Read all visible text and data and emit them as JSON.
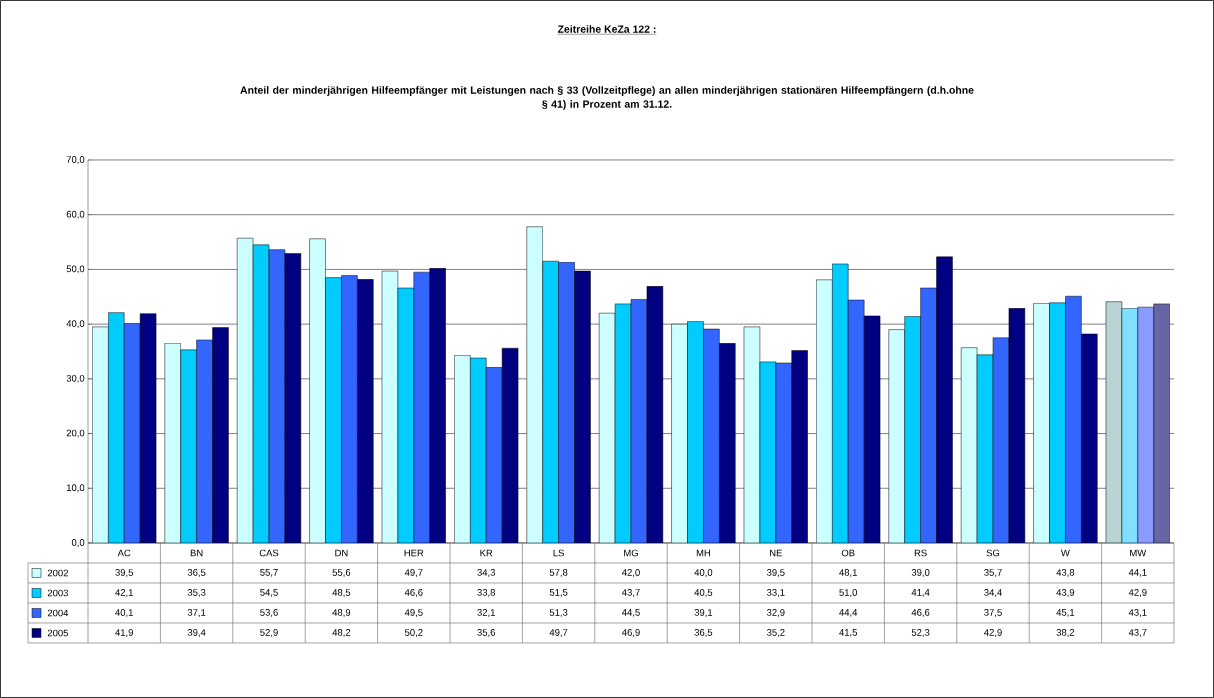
{
  "chart_data": {
    "type": "bar",
    "title": "Zeitreihe KeZa 122 :",
    "subtitle": "Anteil der minderjährigen Hilfeempfänger mit Leistungen nach § 33 (Vollzeitpflege) an allen minderjährigen stationären Hilfeempfängern (d.h.ohne § 41) in Prozent am 31.12.",
    "categories": [
      "AC",
      "BN",
      "CAS",
      "DN",
      "HER",
      "KR",
      "LS",
      "MG",
      "MH",
      "NE",
      "OB",
      "RS",
      "SG",
      "W",
      "MW"
    ],
    "series": [
      {
        "name": "2002",
        "color": "#ccffff",
        "colors": [
          "#ccffff",
          "#ccffff",
          "#ccffff",
          "#ccffff",
          "#ccffff",
          "#ccffff",
          "#ccffff",
          "#ccffff",
          "#ccffff",
          "#ccffff",
          "#ccffff",
          "#ccffff",
          "#ccffff",
          "#ccffff",
          "#b8d4d4"
        ],
        "values": [
          39.5,
          36.5,
          55.7,
          55.6,
          49.7,
          34.3,
          57.8,
          42.0,
          40.0,
          39.5,
          48.1,
          39.0,
          35.7,
          43.8,
          44.1
        ],
        "value_labels": [
          "39,5",
          "36,5",
          "55,7",
          "55,6",
          "49,7",
          "34,3",
          "57,8",
          "42,0",
          "40,0",
          "39,5",
          "48,1",
          "39,0",
          "35,7",
          "43,8",
          "44,1"
        ]
      },
      {
        "name": "2003",
        "color": "#00ccff",
        "colors": [
          "#00ccff",
          "#00ccff",
          "#00ccff",
          "#00ccff",
          "#00ccff",
          "#00ccff",
          "#00ccff",
          "#00ccff",
          "#00ccff",
          "#00ccff",
          "#00ccff",
          "#00ccff",
          "#00ccff",
          "#00ccff",
          "#80e0ff"
        ],
        "values": [
          42.1,
          35.3,
          54.5,
          48.5,
          46.6,
          33.8,
          51.5,
          43.7,
          40.5,
          33.1,
          51.0,
          41.4,
          34.4,
          43.9,
          42.9
        ],
        "value_labels": [
          "42,1",
          "35,3",
          "54,5",
          "48,5",
          "46,6",
          "33,8",
          "51,5",
          "43,7",
          "40,5",
          "33,1",
          "51,0",
          "41,4",
          "34,4",
          "43,9",
          "42,9"
        ]
      },
      {
        "name": "2004",
        "color": "#3366ff",
        "colors": [
          "#3366ff",
          "#3366ff",
          "#3366ff",
          "#3366ff",
          "#3366ff",
          "#3366ff",
          "#3366ff",
          "#3366ff",
          "#3366ff",
          "#3366ff",
          "#3366ff",
          "#3366ff",
          "#3366ff",
          "#3366ff",
          "#8a9cff"
        ],
        "values": [
          40.1,
          37.1,
          53.6,
          48.9,
          49.5,
          32.1,
          51.3,
          44.5,
          39.1,
          32.9,
          44.4,
          46.6,
          37.5,
          45.1,
          43.1
        ],
        "value_labels": [
          "40,1",
          "37,1",
          "53,6",
          "48,9",
          "49,5",
          "32,1",
          "51,3",
          "44,5",
          "39,1",
          "32,9",
          "44,4",
          "46,6",
          "37,5",
          "45,1",
          "43,1"
        ]
      },
      {
        "name": "2005",
        "color": "#000080",
        "colors": [
          "#000080",
          "#000080",
          "#000080",
          "#000080",
          "#000080",
          "#000080",
          "#000080",
          "#000080",
          "#000080",
          "#000080",
          "#000080",
          "#000080",
          "#000080",
          "#000080",
          "#6666a6"
        ],
        "values": [
          41.9,
          39.4,
          52.9,
          48.2,
          50.2,
          35.6,
          49.7,
          46.9,
          36.5,
          35.2,
          41.5,
          52.3,
          42.9,
          38.2,
          43.7
        ],
        "value_labels": [
          "41,9",
          "39,4",
          "52,9",
          "48,2",
          "50,2",
          "35,6",
          "49,7",
          "46,9",
          "36,5",
          "35,2",
          "41,5",
          "52,3",
          "42,9",
          "38,2",
          "43,7"
        ]
      }
    ],
    "ylim": [
      0,
      70
    ],
    "yticks": [
      {
        "value": 0,
        "label": "0,0"
      },
      {
        "value": 10,
        "label": "10,0"
      },
      {
        "value": 20,
        "label": "20,0"
      },
      {
        "value": 30,
        "label": "30,0"
      },
      {
        "value": 40,
        "label": "40,0"
      },
      {
        "value": 50,
        "label": "50,0"
      },
      {
        "value": 60,
        "label": "60,0"
      },
      {
        "value": 70,
        "label": "70,0"
      }
    ],
    "grid": "y",
    "legend": "bottom"
  }
}
